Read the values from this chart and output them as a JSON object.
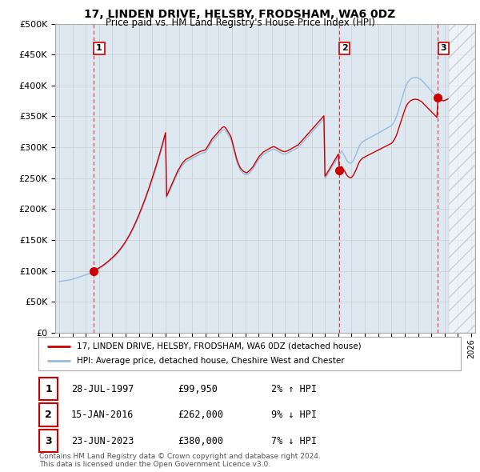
{
  "title": "17, LINDEN DRIVE, HELSBY, FRODSHAM, WA6 0DZ",
  "subtitle": "Price paid vs. HM Land Registry's House Price Index (HPI)",
  "ylim": [
    0,
    500000
  ],
  "yticks": [
    0,
    50000,
    100000,
    150000,
    200000,
    250000,
    300000,
    350000,
    400000,
    450000,
    500000
  ],
  "ytick_labels": [
    "£0",
    "£50K",
    "£100K",
    "£150K",
    "£200K",
    "£250K",
    "£300K",
    "£350K",
    "£400K",
    "£450K",
    "£500K"
  ],
  "xlim_start": 1994.7,
  "xlim_end": 2026.3,
  "hatch_start": 2024.33,
  "sale_color": "#cc0000",
  "hpi_color": "#99bbdd",
  "grid_color": "#cccccc",
  "bg_color": "#ffffff",
  "plot_bg_color": "#dde8f0",
  "legend_label_sale": "17, LINDEN DRIVE, HELSBY, FRODSHAM, WA6 0DZ (detached house)",
  "legend_label_hpi": "HPI: Average price, detached house, Cheshire West and Chester",
  "sales": [
    {
      "label": "1",
      "date_num": 1997.57,
      "price": 99950
    },
    {
      "label": "2",
      "date_num": 2016.04,
      "price": 262000
    },
    {
      "label": "3",
      "date_num": 2023.47,
      "price": 380000
    }
  ],
  "sale_annotations": [
    {
      "num": "1",
      "date": "28-JUL-1997",
      "price": "£99,950",
      "hpi_rel": "2% ↑ HPI"
    },
    {
      "num": "2",
      "date": "15-JAN-2016",
      "price": "£262,000",
      "hpi_rel": "9% ↓ HPI"
    },
    {
      "num": "3",
      "date": "23-JUN-2023",
      "price": "£380,000",
      "hpi_rel": "7% ↓ HPI"
    }
  ],
  "vline_color": "#dd3333",
  "footer": "Contains HM Land Registry data © Crown copyright and database right 2024.\nThis data is licensed under the Open Government Licence v3.0.",
  "hpi_data_x": [
    1995.0,
    1995.083,
    1995.167,
    1995.25,
    1995.333,
    1995.417,
    1995.5,
    1995.583,
    1995.667,
    1995.75,
    1995.833,
    1995.917,
    1996.0,
    1996.083,
    1996.167,
    1996.25,
    1996.333,
    1996.417,
    1996.5,
    1996.583,
    1996.667,
    1996.75,
    1996.833,
    1996.917,
    1997.0,
    1997.083,
    1997.167,
    1997.25,
    1997.333,
    1997.417,
    1997.5,
    1997.583,
    1997.667,
    1997.75,
    1997.833,
    1997.917,
    1998.0,
    1998.083,
    1998.167,
    1998.25,
    1998.333,
    1998.417,
    1998.5,
    1998.583,
    1998.667,
    1998.75,
    1998.833,
    1998.917,
    1999.0,
    1999.083,
    1999.167,
    1999.25,
    1999.333,
    1999.417,
    1999.5,
    1999.583,
    1999.667,
    1999.75,
    1999.833,
    1999.917,
    2000.0,
    2000.083,
    2000.167,
    2000.25,
    2000.333,
    2000.417,
    2000.5,
    2000.583,
    2000.667,
    2000.75,
    2000.833,
    2000.917,
    2001.0,
    2001.083,
    2001.167,
    2001.25,
    2001.333,
    2001.417,
    2001.5,
    2001.583,
    2001.667,
    2001.75,
    2001.833,
    2001.917,
    2002.0,
    2002.083,
    2002.167,
    2002.25,
    2002.333,
    2002.417,
    2002.5,
    2002.583,
    2002.667,
    2002.75,
    2002.833,
    2002.917,
    2003.0,
    2003.083,
    2003.167,
    2003.25,
    2003.333,
    2003.417,
    2003.5,
    2003.583,
    2003.667,
    2003.75,
    2003.833,
    2003.917,
    2004.0,
    2004.083,
    2004.167,
    2004.25,
    2004.333,
    2004.417,
    2004.5,
    2004.583,
    2004.667,
    2004.75,
    2004.833,
    2004.917,
    2005.0,
    2005.083,
    2005.167,
    2005.25,
    2005.333,
    2005.417,
    2005.5,
    2005.583,
    2005.667,
    2005.75,
    2005.833,
    2005.917,
    2006.0,
    2006.083,
    2006.167,
    2006.25,
    2006.333,
    2006.417,
    2006.5,
    2006.583,
    2006.667,
    2006.75,
    2006.833,
    2006.917,
    2007.0,
    2007.083,
    2007.167,
    2007.25,
    2007.333,
    2007.417,
    2007.5,
    2007.583,
    2007.667,
    2007.75,
    2007.833,
    2007.917,
    2008.0,
    2008.083,
    2008.167,
    2008.25,
    2008.333,
    2008.417,
    2008.5,
    2008.583,
    2008.667,
    2008.75,
    2008.833,
    2008.917,
    2009.0,
    2009.083,
    2009.167,
    2009.25,
    2009.333,
    2009.417,
    2009.5,
    2009.583,
    2009.667,
    2009.75,
    2009.833,
    2009.917,
    2010.0,
    2010.083,
    2010.167,
    2010.25,
    2010.333,
    2010.417,
    2010.5,
    2010.583,
    2010.667,
    2010.75,
    2010.833,
    2010.917,
    2011.0,
    2011.083,
    2011.167,
    2011.25,
    2011.333,
    2011.417,
    2011.5,
    2011.583,
    2011.667,
    2011.75,
    2011.833,
    2011.917,
    2012.0,
    2012.083,
    2012.167,
    2012.25,
    2012.333,
    2012.417,
    2012.5,
    2012.583,
    2012.667,
    2012.75,
    2012.833,
    2012.917,
    2013.0,
    2013.083,
    2013.167,
    2013.25,
    2013.333,
    2013.417,
    2013.5,
    2013.583,
    2013.667,
    2013.75,
    2013.833,
    2013.917,
    2014.0,
    2014.083,
    2014.167,
    2014.25,
    2014.333,
    2014.417,
    2014.5,
    2014.583,
    2014.667,
    2014.75,
    2014.833,
    2014.917,
    2015.0,
    2015.083,
    2015.167,
    2015.25,
    2015.333,
    2015.417,
    2015.5,
    2015.583,
    2015.667,
    2015.75,
    2015.833,
    2015.917,
    2016.0,
    2016.083,
    2016.167,
    2016.25,
    2016.333,
    2016.417,
    2016.5,
    2016.583,
    2016.667,
    2016.75,
    2016.833,
    2016.917,
    2017.0,
    2017.083,
    2017.167,
    2017.25,
    2017.333,
    2017.417,
    2017.5,
    2017.583,
    2017.667,
    2017.75,
    2017.833,
    2017.917,
    2018.0,
    2018.083,
    2018.167,
    2018.25,
    2018.333,
    2018.417,
    2018.5,
    2018.583,
    2018.667,
    2018.75,
    2018.833,
    2018.917,
    2019.0,
    2019.083,
    2019.167,
    2019.25,
    2019.333,
    2019.417,
    2019.5,
    2019.583,
    2019.667,
    2019.75,
    2019.833,
    2019.917,
    2020.0,
    2020.083,
    2020.167,
    2020.25,
    2020.333,
    2020.417,
    2020.5,
    2020.583,
    2020.667,
    2020.75,
    2020.833,
    2020.917,
    2021.0,
    2021.083,
    2021.167,
    2021.25,
    2021.333,
    2021.417,
    2021.5,
    2021.583,
    2021.667,
    2021.75,
    2021.833,
    2021.917,
    2022.0,
    2022.083,
    2022.167,
    2022.25,
    2022.333,
    2022.417,
    2022.5,
    2022.583,
    2022.667,
    2022.75,
    2022.833,
    2022.917,
    2023.0,
    2023.083,
    2023.167,
    2023.25,
    2023.333,
    2023.417,
    2023.5,
    2023.583,
    2023.667,
    2023.75,
    2023.833,
    2023.917,
    2024.0,
    2024.083,
    2024.167,
    2024.25
  ],
  "hpi_data_y": [
    83000,
    83200,
    83500,
    83700,
    84000,
    84300,
    84500,
    84700,
    85000,
    85300,
    85600,
    86000,
    86500,
    87000,
    87600,
    88200,
    88800,
    89400,
    90000,
    90600,
    91200,
    91800,
    92400,
    93000,
    93600,
    94200,
    94900,
    95600,
    96300,
    97100,
    97900,
    98700,
    99600,
    100500,
    101400,
    102400,
    103400,
    104500,
    105600,
    106800,
    108100,
    109400,
    110800,
    112200,
    113700,
    115200,
    116700,
    118200,
    119800,
    121500,
    123200,
    125000,
    126900,
    128900,
    131000,
    133200,
    135500,
    137900,
    140400,
    143000,
    145700,
    148600,
    151600,
    154700,
    157900,
    161300,
    164800,
    168400,
    172200,
    176100,
    180100,
    184200,
    188400,
    192700,
    197100,
    201600,
    206200,
    210900,
    215700,
    220600,
    225600,
    230700,
    235900,
    241200,
    246600,
    252100,
    257700,
    263400,
    269200,
    275100,
    281100,
    287200,
    293400,
    299700,
    306100,
    312600,
    319200,
    218000,
    222000,
    226000,
    230000,
    234000,
    238000,
    242000,
    246000,
    250000,
    254000,
    258000,
    261000,
    264000,
    267000,
    270000,
    272000,
    274000,
    276000,
    277000,
    278000,
    279000,
    280000,
    281000,
    282000,
    283000,
    284000,
    285000,
    286000,
    287000,
    288000,
    289000,
    289500,
    290000,
    290500,
    291000,
    292000,
    294000,
    297000,
    300000,
    303000,
    306000,
    309000,
    311000,
    313000,
    315000,
    317000,
    319000,
    321000,
    323000,
    325000,
    327000,
    328000,
    328500,
    327000,
    325000,
    322000,
    319000,
    316000,
    313000,
    307000,
    300000,
    293000,
    286000,
    279000,
    273000,
    269000,
    265000,
    262000,
    260000,
    258000,
    257000,
    256000,
    255000,
    256000,
    257500,
    259000,
    261000,
    263000,
    265000,
    268000,
    271000,
    274000,
    277000,
    280000,
    282000,
    284000,
    286000,
    288000,
    289000,
    290000,
    291000,
    292000,
    293000,
    294000,
    295000,
    296000,
    296500,
    297000,
    296000,
    295000,
    294000,
    293000,
    292000,
    291000,
    290000,
    289500,
    289000,
    289000,
    289500,
    290000,
    291000,
    292000,
    293000,
    294000,
    295000,
    296000,
    297000,
    298000,
    299000,
    300000,
    302000,
    304000,
    306000,
    308000,
    310000,
    312000,
    314000,
    316000,
    318000,
    320000,
    322000,
    324000,
    326000,
    328000,
    330000,
    332000,
    334000,
    336000,
    338000,
    340000,
    342000,
    344000,
    346000,
    250000,
    252000,
    255000,
    258000,
    261000,
    264000,
    267000,
    270000,
    273000,
    276000,
    279000,
    282000,
    285000,
    288000,
    291000,
    294000,
    291000,
    288000,
    285000,
    281000,
    278000,
    276000,
    275000,
    274000,
    275000,
    277000,
    280000,
    284000,
    288000,
    293000,
    298000,
    302000,
    305000,
    307000,
    309000,
    310000,
    311000,
    312000,
    313000,
    314000,
    315000,
    316000,
    317000,
    318000,
    319000,
    320000,
    321000,
    322000,
    323000,
    324000,
    325000,
    326000,
    327000,
    328000,
    329000,
    330000,
    331000,
    332000,
    333000,
    334000,
    335000,
    337000,
    340000,
    343000,
    347000,
    352000,
    358000,
    364000,
    370000,
    376000,
    382000,
    388000,
    394000,
    399000,
    403000,
    406000,
    408000,
    410000,
    411000,
    412000,
    412500,
    413000,
    413000,
    412500,
    412000,
    411000,
    410000,
    409000,
    407000,
    405000,
    403000,
    401000,
    399000,
    397000,
    395000,
    393000,
    391000,
    389000,
    387000,
    385000,
    383000,
    381000,
    379000,
    378000,
    377000,
    376000,
    375500,
    375000,
    375500,
    376000,
    377000,
    378000
  ]
}
